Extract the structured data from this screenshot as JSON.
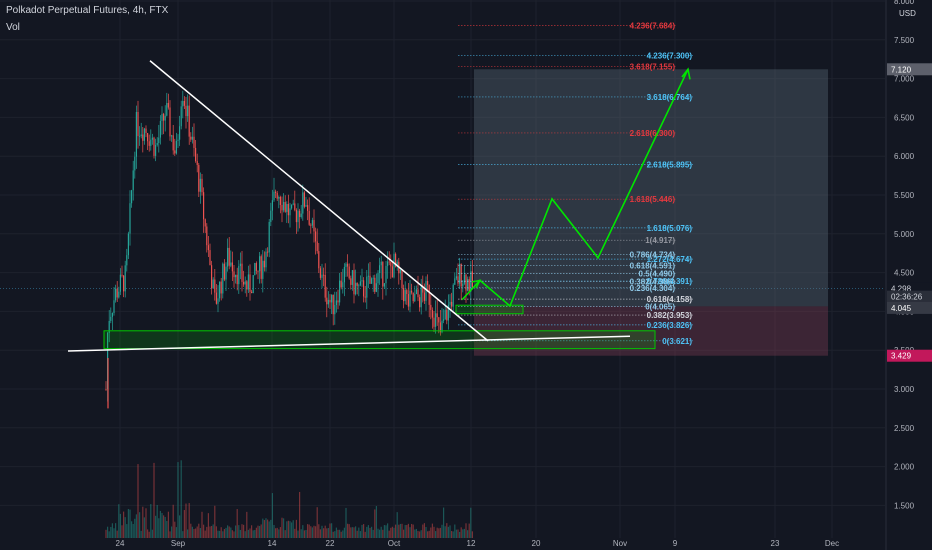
{
  "header": {
    "title": "Polkadot Perpetual Futures, 4h, FTX",
    "volume_label": "Vol",
    "currency": "USD"
  },
  "price_tags": [
    {
      "label": "7.120",
      "bg": "#5d606b",
      "fg": "#ffffff",
      "price": 7.12
    },
    {
      "label": "4.298",
      "bg": "#131722",
      "fg": "#d1d4dc",
      "price": 4.298
    },
    {
      "label": "02:36:26",
      "bg": "#2a2e39",
      "fg": "#d1d4dc",
      "price": 4.19
    },
    {
      "label": "4.045",
      "bg": "#363a45",
      "fg": "#ffffff",
      "price": 4.045
    },
    {
      "label": "3.429",
      "bg": "#c2185b",
      "fg": "#ffffff",
      "price": 3.429
    }
  ],
  "colors": {
    "background": "#131722",
    "up": "#26a69a",
    "down": "#ef5350",
    "trendline": "#ffffff",
    "projection": "#00e600",
    "support_zone": "#00c800",
    "fib_blue": "#4fc3f7",
    "fib_red": "#e5393f",
    "fib_gray": "#9598a1",
    "box_top": "#5d6b7a",
    "box_bottom": "#7a3b52"
  },
  "chart_data": {
    "type": "candlestick",
    "title": "Polkadot Perpetual Futures, 4h, FTX",
    "xlabel": "",
    "ylabel": "",
    "ylim": [
      1.2,
      8.0
    ],
    "y_ticks": [
      "8.000",
      "7.500",
      "7.000",
      "6.500",
      "6.000",
      "5.500",
      "5.000",
      "4.500",
      "4.000",
      "3.500",
      "3.000",
      "2.500",
      "2.000",
      "1.500"
    ],
    "x_ticks": [
      "24",
      "Sep",
      "14",
      "22",
      "Oct",
      "12",
      "20",
      "Nov",
      "9",
      "23",
      "Dec"
    ],
    "grid": true,
    "volume": true,
    "last_price": 4.298,
    "price_series": [
      {
        "price": 3.0
      },
      {
        "price": 3.9
      },
      {
        "price": 4.25
      },
      {
        "price": 4.45
      },
      {
        "price": 6.4
      },
      {
        "price": 6.35
      },
      {
        "price": 6.1
      },
      {
        "price": 6.6
      },
      {
        "price": 6.0
      },
      {
        "price": 6.9
      },
      {
        "price": 5.6
      },
      {
        "price": 4.1
      },
      {
        "price": 4.7
      },
      {
        "price": 4.3
      },
      {
        "price": 4.65
      },
      {
        "price": 5.6
      },
      {
        "price": 5.2
      },
      {
        "price": 5.45
      },
      {
        "price": 4.4
      },
      {
        "price": 4.05
      },
      {
        "price": 4.5
      },
      {
        "price": 4.25
      },
      {
        "price": 4.6
      },
      {
        "price": 4.1
      },
      {
        "price": 4.25
      },
      {
        "price": 3.7
      },
      {
        "price": 3.95
      },
      {
        "price": 4.5
      },
      {
        "price": 4.3
      }
    ],
    "fib_levels_set1": [
      {
        "label": "4.236(7.300)",
        "price": 7.3
      },
      {
        "label": "3.618(6.764)",
        "price": 6.764
      },
      {
        "label": "2.618(5.895)",
        "price": 5.895
      },
      {
        "label": "1.618(5.076)",
        "price": 5.076
      },
      {
        "label": "1.272(4.674)",
        "price": 4.674
      },
      {
        "label": "0.786(4.391)",
        "price": 4.391
      },
      {
        "label": "0.618(4.158)",
        "price": 4.158
      },
      {
        "label": "0.382(3.953)",
        "price": 3.953
      },
      {
        "label": "0.236(3.826)",
        "price": 3.826
      },
      {
        "label": "0(3.621)",
        "price": 3.621
      }
    ],
    "fib_levels_set2": [
      {
        "label": "4.236(7.684)",
        "price": 7.684
      },
      {
        "label": "3.618(7.155)",
        "price": 7.155
      },
      {
        "label": "2.618(6.300)",
        "price": 6.3
      },
      {
        "label": "1.618(5.446)",
        "price": 5.446
      },
      {
        "label": "1(4.917)",
        "price": 4.917
      },
      {
        "label": "0.786(4.734)",
        "price": 4.734
      },
      {
        "label": "0.618(4.591)",
        "price": 4.591
      },
      {
        "label": "0.5(4.490)",
        "price": 4.49
      },
      {
        "label": "0.382(4.386)",
        "price": 4.386
      },
      {
        "label": "0.236(4.304)",
        "price": 4.304
      },
      {
        "label": "0(4.065)",
        "price": 4.065
      }
    ]
  }
}
